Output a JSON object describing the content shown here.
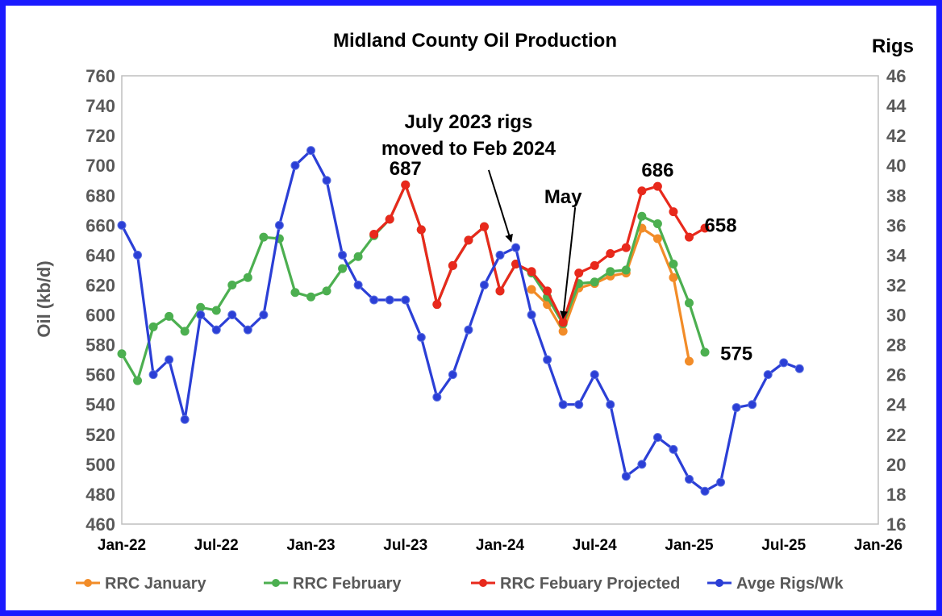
{
  "chart_data": {
    "type": "line",
    "title": "Midland County Oil Production",
    "ylabel": "Oil (kb/d)",
    "y2label": "Rigs",
    "ylim": [
      460,
      760
    ],
    "y2lim": [
      16,
      46
    ],
    "xlim": [
      "2022-01",
      "2026-01"
    ],
    "y_ticks": [
      "460",
      "480",
      "500",
      "520",
      "540",
      "560",
      "580",
      "600",
      "620",
      "640",
      "660",
      "680",
      "700",
      "720",
      "740",
      "760"
    ],
    "y2_ticks": [
      "16",
      "18",
      "20",
      "22",
      "24",
      "26",
      "28",
      "30",
      "32",
      "34",
      "36",
      "38",
      "40",
      "42",
      "44",
      "46"
    ],
    "x_ticks": [
      "Jan-22",
      "Jul-22",
      "Jan-23",
      "Jul-23",
      "Jan-24",
      "Jul-24",
      "Jan-25",
      "Jul-25",
      "Jan-26"
    ],
    "grid": "horizontal-none",
    "legend_position": "bottom",
    "series": [
      {
        "name": "RRC January",
        "color": "#f28c28",
        "axis": "left",
        "points": [
          [
            "2024-03",
            617
          ],
          [
            "2024-04",
            607
          ],
          [
            "2024-05",
            589
          ],
          [
            "2024-06",
            618
          ],
          [
            "2024-07",
            621
          ],
          [
            "2024-08",
            626
          ],
          [
            "2024-09",
            628
          ],
          [
            "2024-10",
            658
          ],
          [
            "2024-11",
            651
          ],
          [
            "2024-12",
            625
          ],
          [
            "2025-01",
            569
          ]
        ]
      },
      {
        "name": "RRC February",
        "color": "#4caf50",
        "axis": "left",
        "points": [
          [
            "2022-01",
            574
          ],
          [
            "2022-02",
            556
          ],
          [
            "2022-03",
            592
          ],
          [
            "2022-04",
            599
          ],
          [
            "2022-05",
            589
          ],
          [
            "2022-06",
            605
          ],
          [
            "2022-07",
            603
          ],
          [
            "2022-08",
            620
          ],
          [
            "2022-09",
            625
          ],
          [
            "2022-10",
            652
          ],
          [
            "2022-11",
            651
          ],
          [
            "2022-12",
            615
          ],
          [
            "2023-01",
            612
          ],
          [
            "2023-02",
            616
          ],
          [
            "2023-03",
            631
          ],
          [
            "2023-04",
            639
          ],
          [
            "2023-05",
            653
          ],
          [
            "2023-06",
            664
          ],
          [
            "2023-07",
            687
          ],
          [
            "2023-08",
            657
          ],
          [
            "2023-09",
            607
          ],
          [
            "2023-10",
            633
          ],
          [
            "2023-11",
            650
          ],
          [
            "2023-12",
            659
          ],
          [
            "2024-01",
            616
          ],
          [
            "2024-02",
            634
          ],
          [
            "2024-03",
            628
          ],
          [
            "2024-04",
            612
          ],
          [
            "2024-05",
            594
          ],
          [
            "2024-06",
            621
          ],
          [
            "2024-07",
            622
          ],
          [
            "2024-08",
            629
          ],
          [
            "2024-09",
            630
          ],
          [
            "2024-10",
            666
          ],
          [
            "2024-11",
            661
          ],
          [
            "2024-12",
            634
          ],
          [
            "2025-01",
            608
          ],
          [
            "2025-02",
            575
          ]
        ]
      },
      {
        "name": "RRC Febuary Projected",
        "color": "#e8291c",
        "axis": "left",
        "points": [
          [
            "2023-05",
            654
          ],
          [
            "2023-06",
            664
          ],
          [
            "2023-07",
            687
          ],
          [
            "2023-08",
            657
          ],
          [
            "2023-09",
            607
          ],
          [
            "2023-10",
            633
          ],
          [
            "2023-11",
            650
          ],
          [
            "2023-12",
            659
          ],
          [
            "2024-01",
            616
          ],
          [
            "2024-02",
            634
          ],
          [
            "2024-03",
            629
          ],
          [
            "2024-04",
            616
          ],
          [
            "2024-05",
            595
          ],
          [
            "2024-06",
            628
          ],
          [
            "2024-07",
            633
          ],
          [
            "2024-08",
            641
          ],
          [
            "2024-09",
            645
          ],
          [
            "2024-10",
            683
          ],
          [
            "2024-11",
            686
          ],
          [
            "2024-12",
            669
          ],
          [
            "2025-01",
            652
          ],
          [
            "2025-02",
            658
          ]
        ]
      },
      {
        "name": "Avge Rigs/Wk",
        "color": "#2b3fd6",
        "axis": "right",
        "points": [
          [
            "2022-01",
            36
          ],
          [
            "2022-02",
            34
          ],
          [
            "2022-03",
            26
          ],
          [
            "2022-04",
            27
          ],
          [
            "2022-05",
            23
          ],
          [
            "2022-06",
            30
          ],
          [
            "2022-07",
            29
          ],
          [
            "2022-08",
            30
          ],
          [
            "2022-09",
            29
          ],
          [
            "2022-10",
            30
          ],
          [
            "2022-11",
            36
          ],
          [
            "2022-12",
            40
          ],
          [
            "2023-01",
            41
          ],
          [
            "2023-02",
            39
          ],
          [
            "2023-03",
            34
          ],
          [
            "2023-04",
            32
          ],
          [
            "2023-05",
            31
          ],
          [
            "2023-06",
            31
          ],
          [
            "2023-07",
            31
          ],
          [
            "2023-08",
            28.5
          ],
          [
            "2023-09",
            24.5
          ],
          [
            "2023-10",
            26
          ],
          [
            "2023-11",
            29
          ],
          [
            "2023-12",
            32
          ],
          [
            "2024-01",
            34
          ],
          [
            "2024-02",
            34.5
          ],
          [
            "2024-03",
            30
          ],
          [
            "2024-04",
            27
          ],
          [
            "2024-05",
            24
          ],
          [
            "2024-06",
            24
          ],
          [
            "2024-07",
            26
          ],
          [
            "2024-08",
            24
          ],
          [
            "2024-09",
            19.2
          ],
          [
            "2024-10",
            20
          ],
          [
            "2024-11",
            21.8
          ],
          [
            "2024-12",
            21
          ],
          [
            "2025-01",
            19
          ],
          [
            "2025-02",
            18.2
          ],
          [
            "2025-03",
            18.8
          ],
          [
            "2025-04",
            23.8
          ],
          [
            "2025-05",
            24
          ],
          [
            "2025-06",
            26
          ],
          [
            "2025-07",
            26.8
          ],
          [
            "2025-08",
            26.4
          ]
        ]
      }
    ],
    "annotations": [
      {
        "text": "687",
        "x": "2023-07",
        "y": 698
      },
      {
        "text": "686",
        "x": "2024-11",
        "y": 697
      },
      {
        "text": "658",
        "x": "2025-03",
        "y": 660
      },
      {
        "text": "575",
        "x": "2025-04",
        "y": 574
      },
      {
        "text": "May",
        "x": "2024-05",
        "y": 679
      }
    ],
    "arrow_notes": [
      {
        "text": [
          "July 2023 rigs",
          "moved to Feb 2024"
        ],
        "x": "2023-11",
        "y": 725,
        "to_x": "2024-02",
        "to_y": 644
      },
      {
        "text": [
          "May"
        ],
        "to_x": "2024-05",
        "to_y": 596
      }
    ]
  }
}
